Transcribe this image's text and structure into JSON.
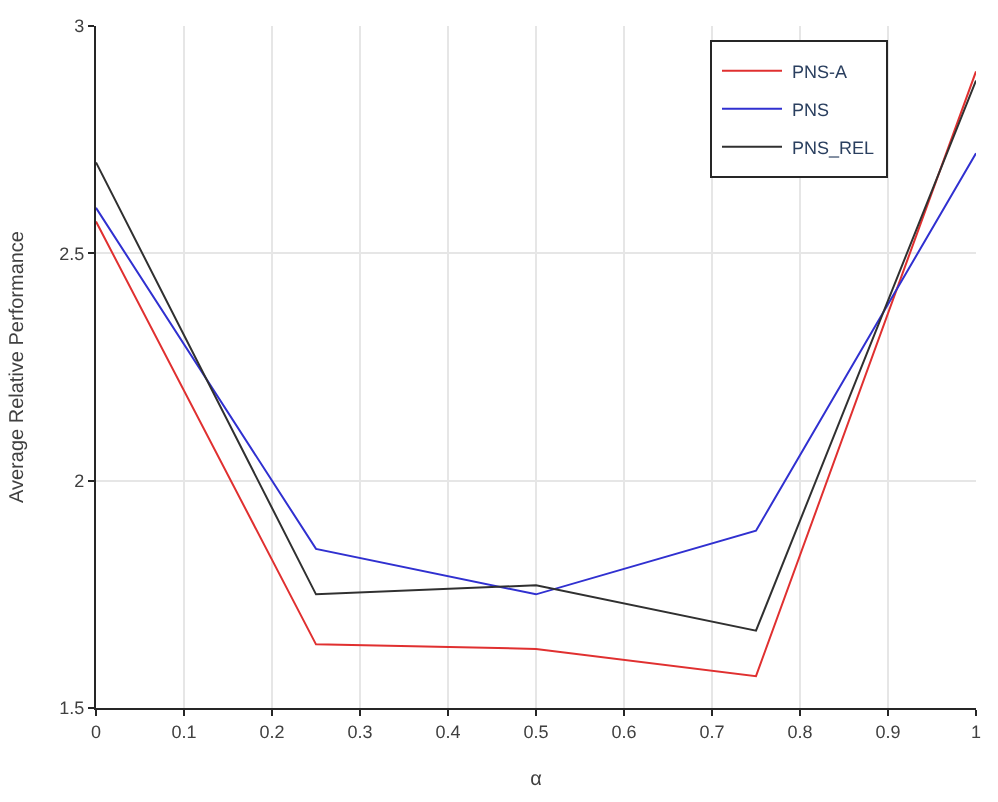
{
  "chart_data": {
    "type": "line",
    "xlabel": "α",
    "ylabel": "Average Relative Performance",
    "x": [
      0,
      0.25,
      0.5,
      0.75,
      1
    ],
    "series": [
      {
        "name": "PNS-A",
        "color": "#e03030",
        "values": [
          2.57,
          1.64,
          1.63,
          1.57,
          2.9
        ]
      },
      {
        "name": "PNS",
        "color": "#3030d0",
        "values": [
          2.6,
          1.85,
          1.75,
          1.89,
          2.72
        ]
      },
      {
        "name": "PNS_REL",
        "color": "#303030",
        "values": [
          2.7,
          1.75,
          1.77,
          1.67,
          2.88
        ]
      }
    ],
    "xlim": [
      0,
      1
    ],
    "xticks": [
      0,
      0.1,
      0.2,
      0.3,
      0.4,
      0.5,
      0.6,
      0.7,
      0.8,
      0.9,
      1
    ],
    "ylim": [
      1.5,
      3
    ],
    "yticks": [
      1.5,
      2,
      2.5,
      3
    ],
    "grid": true,
    "legend": "top right",
    "marker": "none",
    "line_style": "solid"
  }
}
